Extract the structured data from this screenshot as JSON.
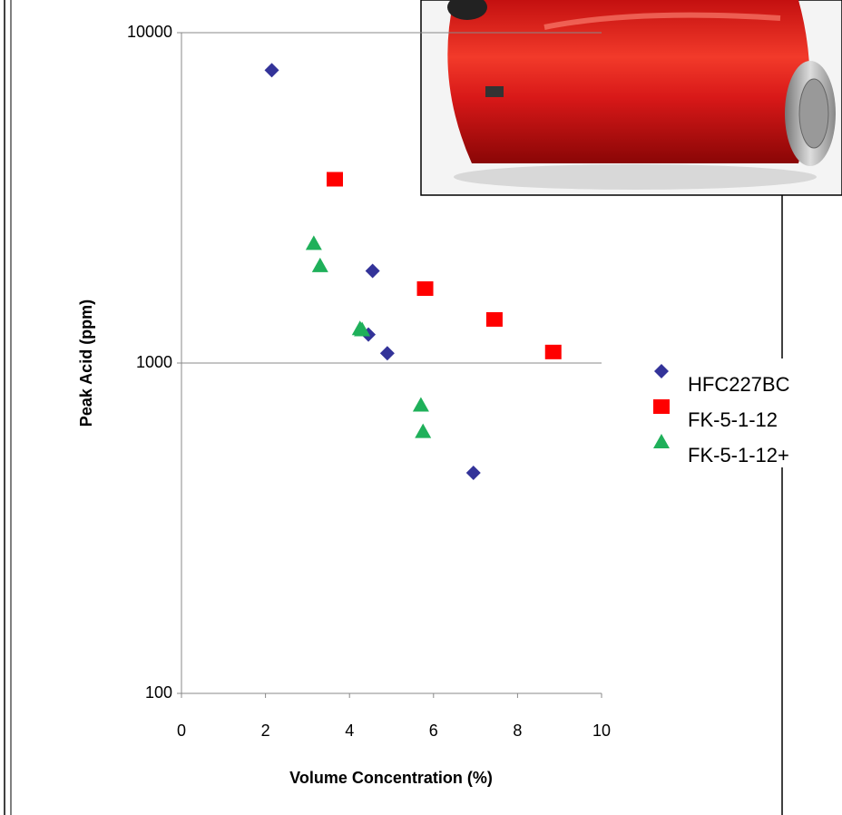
{
  "chart_data": {
    "type": "scatter",
    "x_label": "Volume Concentration (%)",
    "y_label": "Peak Acid (ppm)",
    "xlim": [
      0,
      10
    ],
    "xticks": [
      0,
      2,
      4,
      6,
      8,
      10
    ],
    "ylim": [
      100,
      10000
    ],
    "yticks": [
      100,
      1000,
      10000
    ],
    "ylog": true,
    "grid": true,
    "legend": "right",
    "series": [
      {
        "name": "HFC227BC",
        "color": "#333399",
        "marker": "diamond",
        "x": [
          2.15,
          4.55,
          4.45,
          4.9,
          6.95
        ],
        "values": [
          7700,
          1900,
          1220,
          1070,
          465
        ]
      },
      {
        "name": "FK-5-1-12",
        "color": "#ff0000",
        "marker": "square",
        "x": [
          3.65,
          5.8,
          7.45,
          8.85
        ],
        "values": [
          3600,
          1680,
          1355,
          1080
        ]
      },
      {
        "name": "FK-5-1-12+",
        "color": "#1fb05a",
        "marker": "triangle",
        "x": [
          3.15,
          3.3,
          4.25,
          4.3,
          5.7,
          5.75
        ],
        "values": [
          2300,
          1970,
          1270,
          1260,
          745,
          620
        ]
      }
    ]
  }
}
